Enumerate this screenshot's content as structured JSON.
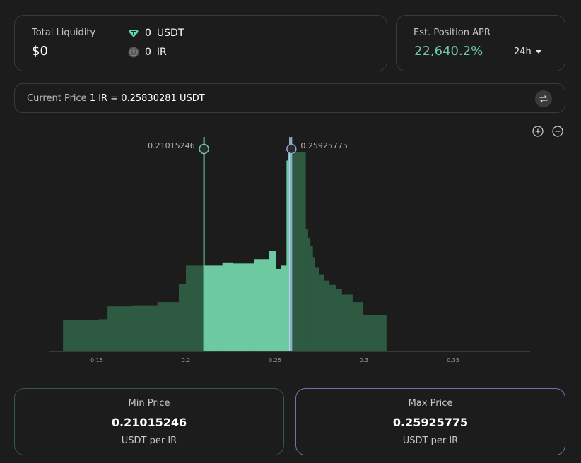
{
  "liquidity": {
    "label": "Total Liquidity",
    "value": "$0",
    "tokens": [
      {
        "amount": "0",
        "symbol": "USDT",
        "icon": "tether-icon",
        "color": "#5fd4b6"
      },
      {
        "amount": "0",
        "symbol": "IR",
        "icon": "ir-token-icon",
        "color": "#777777"
      }
    ]
  },
  "apr": {
    "label": "Est. Position APR",
    "value": "22,640.2%",
    "period": "24h",
    "value_color": "#6cc7a0"
  },
  "current_price": {
    "label": "Current Price",
    "value": "1 IR = 0.25830281 USDT"
  },
  "zoom": {
    "in_icon": "zoom-in-icon",
    "out_icon": "zoom-out-icon"
  },
  "chart_data": {
    "type": "bar",
    "x_range": [
      0.125,
      0.395
    ],
    "y_range": [
      0,
      1
    ],
    "x_ticks": [
      0.15,
      0.2,
      0.25,
      0.3,
      0.35
    ],
    "x_tick_labels": [
      "0.15",
      "0.2",
      "0.25",
      "0.3",
      "0.35"
    ],
    "min_price": 0.21015246,
    "max_price": 0.25925775,
    "current_price": 0.25830281,
    "min_label": "0.21015246",
    "max_label": "0.25925775",
    "colors": {
      "out_of_range": "#2d5a40",
      "in_range": "#6cc9a0",
      "min_handle": "#6cc9a0",
      "max_handle": "#8fa8d8",
      "current_price": "#cfe4ff",
      "axis": "#4a5a50",
      "tick_text": "#9a9a9a",
      "handle_text": "#b5b5b5"
    },
    "bars": [
      {
        "x0": 0.131,
        "x1": 0.151,
        "y": 0.145
      },
      {
        "x0": 0.151,
        "x1": 0.156,
        "y": 0.15
      },
      {
        "x0": 0.156,
        "x1": 0.17,
        "y": 0.21
      },
      {
        "x0": 0.17,
        "x1": 0.184,
        "y": 0.215
      },
      {
        "x0": 0.184,
        "x1": 0.196,
        "y": 0.23
      },
      {
        "x0": 0.196,
        "x1": 0.2,
        "y": 0.315
      },
      {
        "x0": 0.2,
        "x1": 0.21,
        "y": 0.4
      },
      {
        "x0": 0.21,
        "x1": 0.2205,
        "y": 0.4
      },
      {
        "x0": 0.2205,
        "x1": 0.2265,
        "y": 0.415
      },
      {
        "x0": 0.2265,
        "x1": 0.2385,
        "y": 0.41
      },
      {
        "x0": 0.2385,
        "x1": 0.2465,
        "y": 0.43
      },
      {
        "x0": 0.2465,
        "x1": 0.2505,
        "y": 0.47
      },
      {
        "x0": 0.2505,
        "x1": 0.2535,
        "y": 0.385
      },
      {
        "x0": 0.2535,
        "x1": 0.2565,
        "y": 0.4
      },
      {
        "x0": 0.2565,
        "x1": 0.2575,
        "y": 0.89
      },
      {
        "x0": 0.2575,
        "x1": 0.2583,
        "y": 0.94
      },
      {
        "x0": 0.2583,
        "x1": 0.2593,
        "y": 0.99
      },
      {
        "x0": 0.2593,
        "x1": 0.2608,
        "y": 0.92
      },
      {
        "x0": 0.2608,
        "x1": 0.2672,
        "y": 0.93
      },
      {
        "x0": 0.2672,
        "x1": 0.2685,
        "y": 0.57
      },
      {
        "x0": 0.2685,
        "x1": 0.2698,
        "y": 0.53
      },
      {
        "x0": 0.2698,
        "x1": 0.2712,
        "y": 0.49
      },
      {
        "x0": 0.2712,
        "x1": 0.2725,
        "y": 0.44
      },
      {
        "x0": 0.2725,
        "x1": 0.2745,
        "y": 0.39
      },
      {
        "x0": 0.2745,
        "x1": 0.2775,
        "y": 0.36
      },
      {
        "x0": 0.2775,
        "x1": 0.2805,
        "y": 0.33
      },
      {
        "x0": 0.2805,
        "x1": 0.284,
        "y": 0.31
      },
      {
        "x0": 0.284,
        "x1": 0.2875,
        "y": 0.29
      },
      {
        "x0": 0.2875,
        "x1": 0.2935,
        "y": 0.265
      },
      {
        "x0": 0.2935,
        "x1": 0.2995,
        "y": 0.23
      },
      {
        "x0": 0.2995,
        "x1": 0.3125,
        "y": 0.17
      }
    ]
  },
  "min_price": {
    "label": "Min Price",
    "value": "0.21015246",
    "unit": "USDT per IR"
  },
  "max_price": {
    "label": "Max Price",
    "value": "0.25925775",
    "unit": "USDT per IR"
  }
}
